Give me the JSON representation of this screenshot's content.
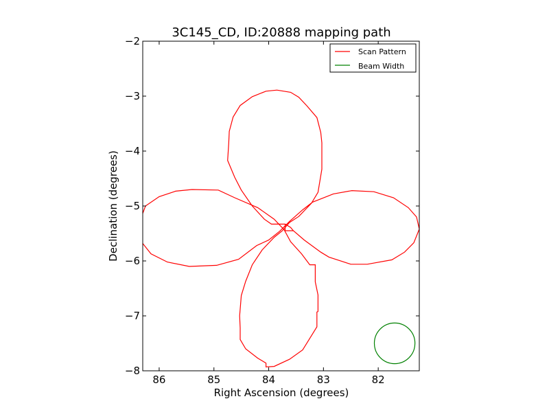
{
  "chart_data": {
    "type": "line",
    "title": "3C145_CD, ID:20888 mapping path",
    "xlabel": "Right Ascension (degrees)",
    "ylabel": "Declination (degrees)",
    "xlim": [
      86.3,
      81.25
    ],
    "ylim": [
      -8,
      -2
    ],
    "x_ticks": [
      86,
      85,
      84,
      83,
      82
    ],
    "y_ticks": [
      -2,
      -3,
      -4,
      -5,
      -6,
      -7,
      -8
    ],
    "x_tick_labels": [
      "86",
      "85",
      "84",
      "83",
      "82"
    ],
    "y_tick_labels": [
      "−2",
      "−3",
      "−4",
      "−5",
      "−6",
      "−7",
      "−8"
    ],
    "grid": false,
    "legend_position": "top-right",
    "series": [
      {
        "name": "Scan Pattern",
        "color": "#ff0000",
        "points": [
          [
            83.7,
            -5.33
          ],
          [
            83.6,
            -5.39
          ],
          [
            83.55,
            -5.45
          ],
          [
            83.35,
            -5.62
          ],
          [
            83.05,
            -5.84
          ],
          [
            82.9,
            -5.93
          ],
          [
            82.5,
            -6.06
          ],
          [
            82.2,
            -6.06
          ],
          [
            81.75,
            -5.98
          ],
          [
            81.52,
            -5.84
          ],
          [
            81.35,
            -5.67
          ],
          [
            81.25,
            -5.42
          ],
          [
            81.3,
            -5.2
          ],
          [
            81.45,
            -5.03
          ],
          [
            81.72,
            -4.85
          ],
          [
            82.08,
            -4.74
          ],
          [
            82.48,
            -4.72
          ],
          [
            82.82,
            -4.78
          ],
          [
            83.2,
            -4.93
          ],
          [
            83.38,
            -5.07
          ],
          [
            83.62,
            -5.28
          ],
          [
            83.8,
            -5.46
          ],
          [
            84.0,
            -5.62
          ],
          [
            84.22,
            -5.72
          ],
          [
            84.55,
            -5.97
          ],
          [
            84.95,
            -6.08
          ],
          [
            85.45,
            -6.1
          ],
          [
            85.85,
            -6.02
          ],
          [
            86.15,
            -5.87
          ],
          [
            86.35,
            -5.62
          ],
          [
            86.38,
            -5.35
          ],
          [
            86.25,
            -5.0
          ],
          [
            86.0,
            -4.83
          ],
          [
            85.7,
            -4.73
          ],
          [
            85.4,
            -4.7
          ],
          [
            84.92,
            -4.71
          ],
          [
            84.62,
            -4.85
          ],
          [
            84.2,
            -5.03
          ],
          [
            83.9,
            -5.24
          ],
          [
            83.72,
            -5.43
          ],
          [
            83.6,
            -5.65
          ],
          [
            83.4,
            -5.87
          ],
          [
            83.25,
            -6.07
          ],
          [
            83.15,
            -6.07
          ],
          [
            83.15,
            -6.38
          ],
          [
            83.1,
            -6.62
          ],
          [
            83.1,
            -6.92
          ],
          [
            83.12,
            -6.93
          ],
          [
            83.12,
            -7.2
          ],
          [
            83.25,
            -7.41
          ],
          [
            83.38,
            -7.62
          ],
          [
            83.62,
            -7.79
          ],
          [
            83.9,
            -7.92
          ],
          [
            84.05,
            -7.93
          ],
          [
            84.05,
            -7.86
          ],
          [
            84.2,
            -7.77
          ],
          [
            84.42,
            -7.6
          ],
          [
            84.52,
            -7.43
          ],
          [
            84.52,
            -7.22
          ],
          [
            84.53,
            -7.0
          ],
          [
            84.5,
            -6.63
          ],
          [
            84.42,
            -6.37
          ],
          [
            84.3,
            -6.07
          ],
          [
            84.12,
            -5.8
          ],
          [
            83.9,
            -5.57
          ],
          [
            83.75,
            -5.45
          ],
          [
            83.62,
            -5.3
          ],
          [
            83.45,
            -5.19
          ],
          [
            83.22,
            -4.95
          ],
          [
            83.1,
            -4.75
          ],
          [
            83.03,
            -4.33
          ],
          [
            83.03,
            -3.85
          ],
          [
            83.05,
            -3.66
          ],
          [
            83.12,
            -3.39
          ],
          [
            83.3,
            -3.18
          ],
          [
            83.45,
            -3.02
          ],
          [
            83.6,
            -2.93
          ],
          [
            83.85,
            -2.89
          ],
          [
            84.05,
            -2.91
          ],
          [
            84.3,
            -3.01
          ],
          [
            84.52,
            -3.17
          ],
          [
            84.65,
            -3.38
          ],
          [
            84.72,
            -3.64
          ],
          [
            84.73,
            -3.86
          ],
          [
            84.75,
            -4.17
          ],
          [
            84.62,
            -4.48
          ],
          [
            84.5,
            -4.71
          ],
          [
            84.3,
            -5.0
          ],
          [
            84.08,
            -5.24
          ],
          [
            83.95,
            -5.33
          ],
          [
            83.7,
            -5.33
          ],
          [
            83.7,
            -5.45
          ],
          [
            83.55,
            -5.45
          ]
        ]
      },
      {
        "name": "Beam Width",
        "color": "#008000",
        "center": [
          81.7,
          -7.5
        ],
        "radius_deg": 0.37
      }
    ]
  }
}
